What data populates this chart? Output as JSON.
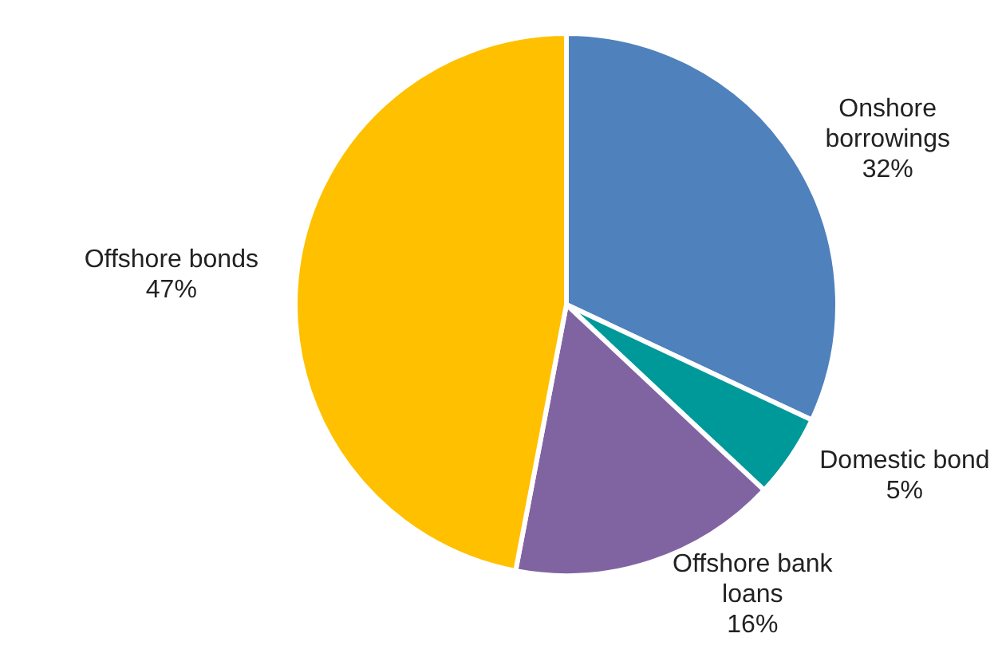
{
  "chart_data": {
    "type": "pie",
    "categories": [
      "Onshore borrowings",
      "Domestic bond",
      "Offshore bank loans",
      "Offshore bonds"
    ],
    "values": [
      32,
      5,
      16,
      47
    ],
    "value_labels": [
      "32%",
      "5%",
      "16%",
      "47%"
    ],
    "colors": [
      "#4f81bd",
      "#009999",
      "#8064a2",
      "#ffc000"
    ]
  }
}
